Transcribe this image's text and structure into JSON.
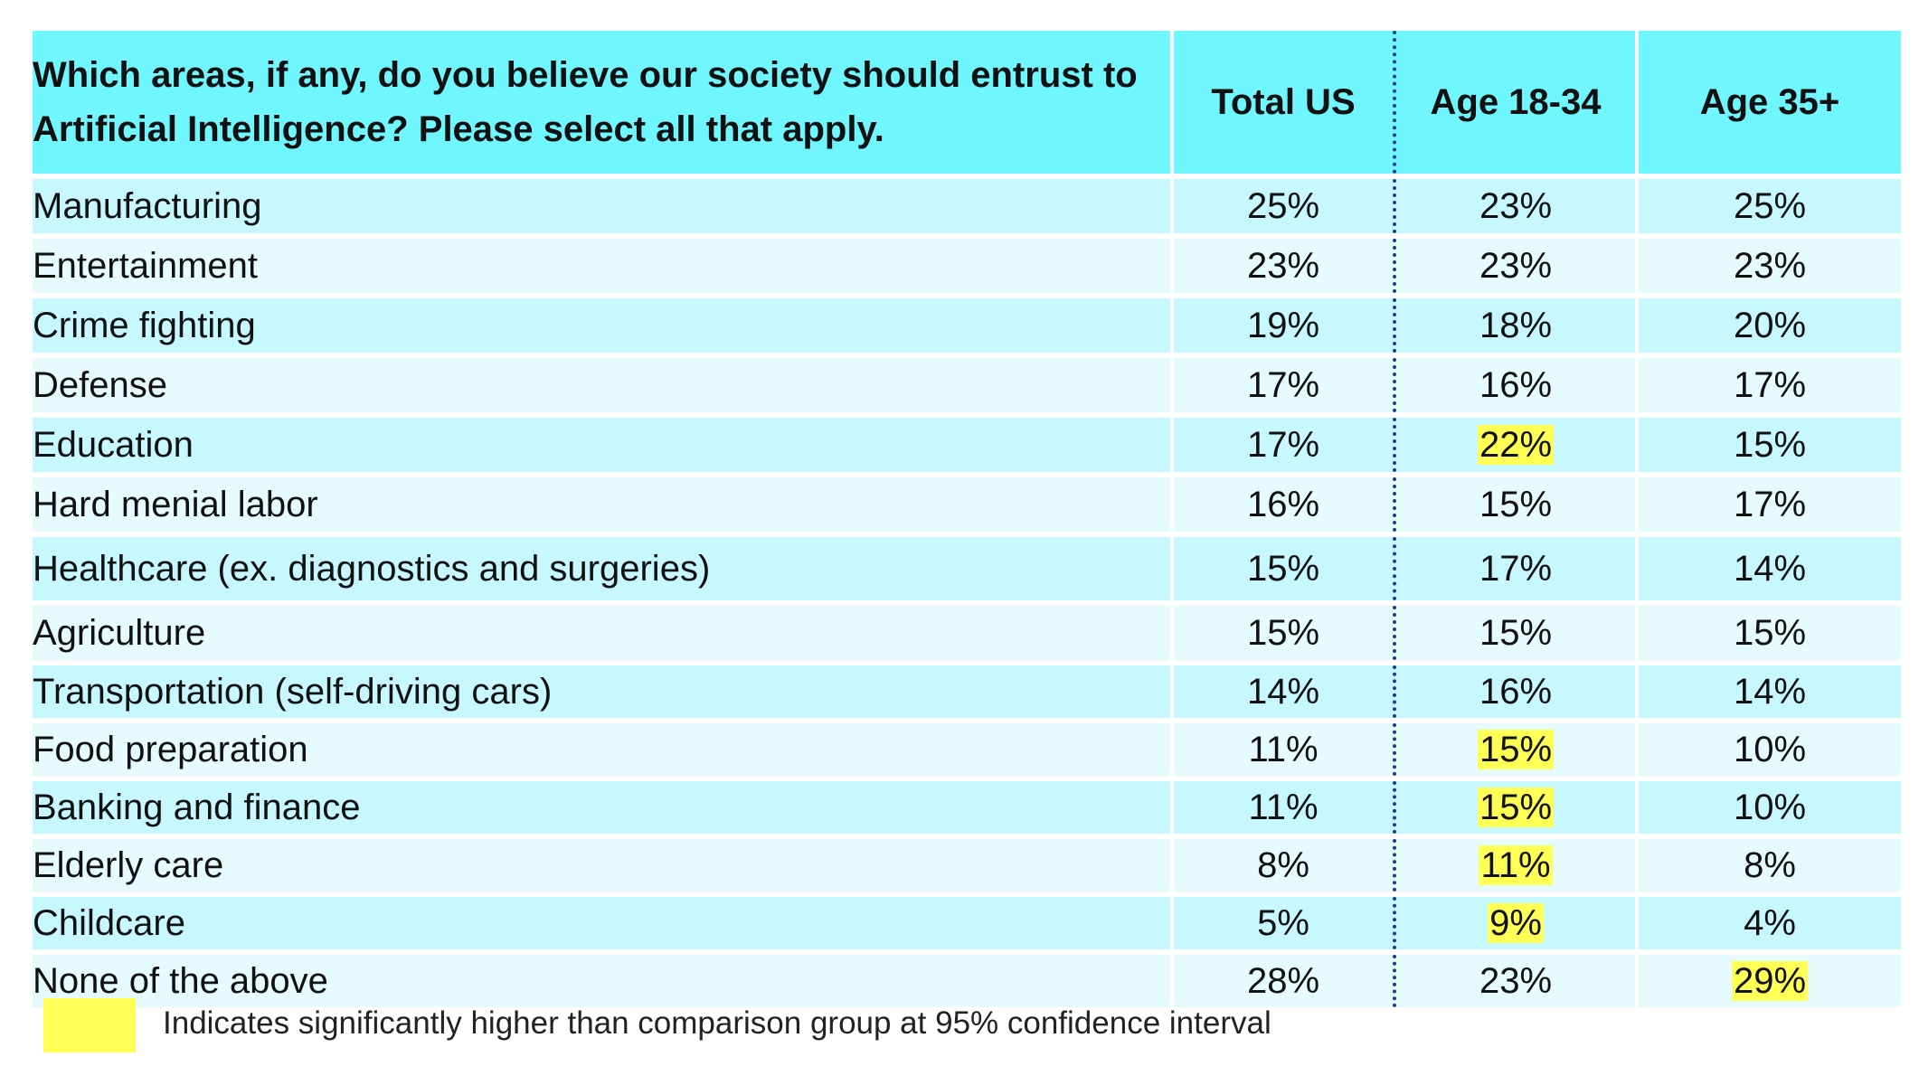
{
  "table": {
    "question": "Which areas, if any, do you believe our society should entrust to Artificial Intelligence?  Please select all that apply.",
    "columns": [
      "Total US",
      "Age 18-34",
      "Age 35+"
    ],
    "rows": [
      {
        "label": "Manufacturing",
        "values": [
          "25%",
          "23%",
          "25%"
        ],
        "highlight": [
          false,
          false,
          false
        ]
      },
      {
        "label": "Entertainment",
        "values": [
          "23%",
          "23%",
          "23%"
        ],
        "highlight": [
          false,
          false,
          false
        ]
      },
      {
        "label": "Crime fighting",
        "values": [
          "19%",
          "18%",
          "20%"
        ],
        "highlight": [
          false,
          false,
          false
        ]
      },
      {
        "label": "Defense",
        "values": [
          "17%",
          "16%",
          "17%"
        ],
        "highlight": [
          false,
          false,
          false
        ]
      },
      {
        "label": "Education",
        "values": [
          "17%",
          "22%",
          "15%"
        ],
        "highlight": [
          false,
          true,
          false
        ]
      },
      {
        "label": "Hard menial labor",
        "values": [
          "16%",
          "15%",
          "17%"
        ],
        "highlight": [
          false,
          false,
          false
        ]
      },
      {
        "label": "Healthcare (ex. diagnostics and surgeries)",
        "values": [
          "15%",
          "17%",
          "14%"
        ],
        "highlight": [
          false,
          false,
          false
        ]
      },
      {
        "label": "Agriculture",
        "values": [
          "15%",
          "15%",
          "15%"
        ],
        "highlight": [
          false,
          false,
          false
        ]
      },
      {
        "label": "Transportation (self-driving cars)",
        "values": [
          "14%",
          "16%",
          "14%"
        ],
        "highlight": [
          false,
          false,
          false
        ]
      },
      {
        "label": "Food preparation",
        "values": [
          "11%",
          "15%",
          "10%"
        ],
        "highlight": [
          false,
          true,
          false
        ]
      },
      {
        "label": "Banking and finance",
        "values": [
          "11%",
          "15%",
          "10%"
        ],
        "highlight": [
          false,
          true,
          false
        ]
      },
      {
        "label": "Elderly care",
        "values": [
          "8%",
          "11%",
          "8%"
        ],
        "highlight": [
          false,
          true,
          false
        ]
      },
      {
        "label": "Childcare",
        "values": [
          "5%",
          "9%",
          "4%"
        ],
        "highlight": [
          false,
          true,
          false
        ]
      },
      {
        "label": "None of the above",
        "values": [
          "28%",
          "23%",
          "29%"
        ],
        "highlight": [
          false,
          false,
          true
        ]
      }
    ]
  },
  "legend": {
    "text": "Indicates significantly higher than comparison group at 95% confidence interval",
    "swatch_color": "#FFFF55"
  },
  "colors": {
    "header_bg": "#6FF6FF",
    "row_odd": "#C7F8FF",
    "row_even": "#E6FBFE",
    "highlight": "#FFFF55",
    "divider": "#1A3E93"
  }
}
